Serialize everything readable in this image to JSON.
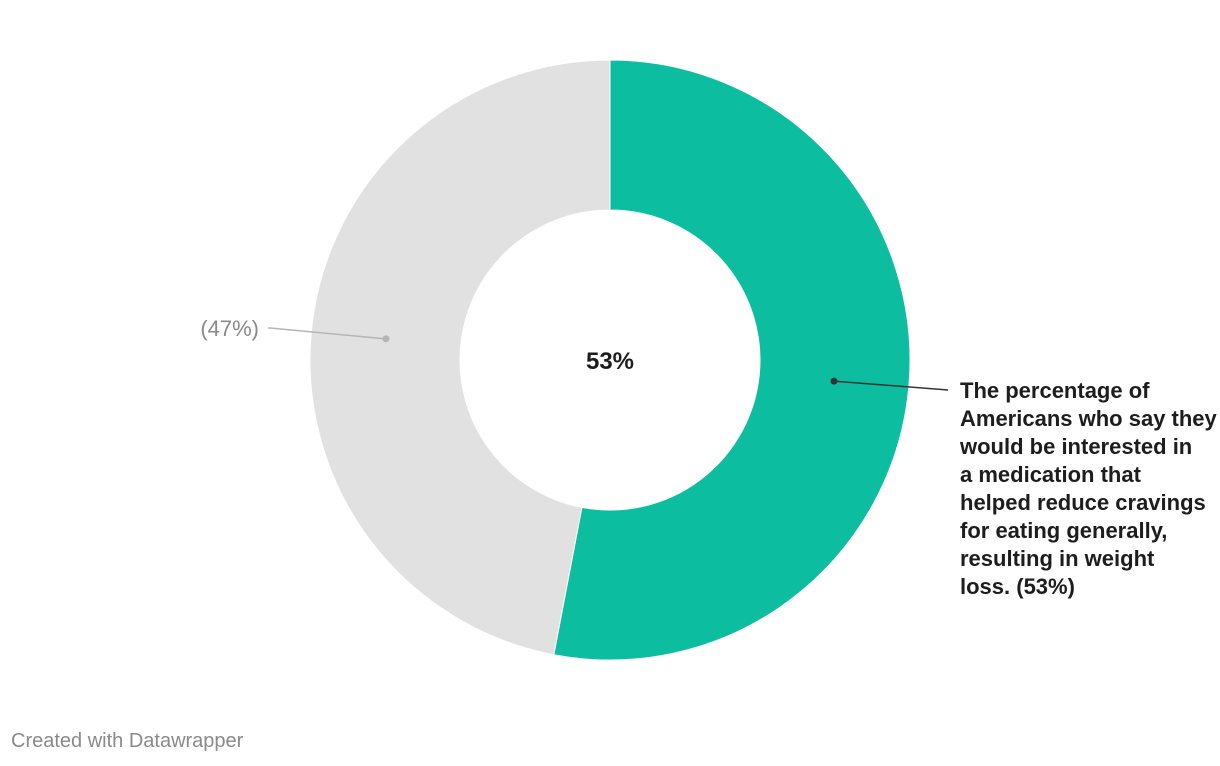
{
  "chart_data": {
    "type": "pie",
    "variant": "donut",
    "slices": [
      {
        "label": "The percentage of Americans who say they would be interested in a medication that helped reduce cravings for eating generally, resulting in weight loss.",
        "value": 53,
        "display_label": "The percentage of Americans who say they would be interested in a medication that helped reduce cravings for eating generally, resulting in weight loss. (53%)",
        "color": "#0dbda0"
      },
      {
        "label": "",
        "value": 47,
        "display_label": "(47%)",
        "color": "#e1e1e1"
      }
    ],
    "center_label": "53%",
    "unit": "%"
  },
  "footer": {
    "credit": "Created with Datawrapper"
  }
}
